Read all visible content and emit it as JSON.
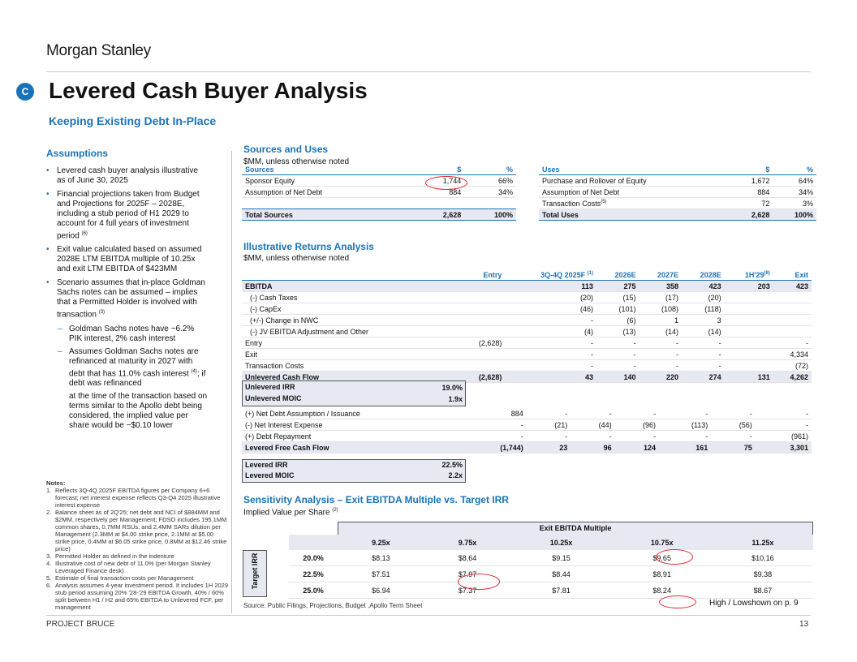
{
  "brand": "Morgan Stanley",
  "badge": "C",
  "title": "Levered Cash Buyer Analysis",
  "subtitle": "Keeping Existing Debt In-Place",
  "assumptions": {
    "heading": "Assumptions",
    "b1": "Levered cash buyer analysis illustrative as of June 30, 2025",
    "b2": "Financial projections taken from Budget and Projections for 2025F – 2028E, including a stub period of H1 2029 to account for 4 full years of investment period",
    "b2_sup": "(6)",
    "b3": "Exit value calculated based on assumed 2028E LTM EBITDA multiple of 10.25x and exit LTM EBITDA of $423MM",
    "b4": "Scenario assumes that in-place Goldman Sachs notes can be assumed – implies that a Permitted Holder is involved with transaction",
    "b4_sup": "(3)",
    "s1": "Goldman Sachs notes have ~6.2% PIK interest, 2% cash interest",
    "s2": "Assumes Goldman Sachs notes are refinanced at maturity in 2027 with debt that has 11.0% cash interest",
    "s2_sup": "(4)",
    "s2_tail": "; if debt was refinanced",
    "s3": "at the time of the transaction based on terms similar to the Apollo debt being considered, the implied value per share would be ~$0.10 lower"
  },
  "notes": {
    "heading": "Notes:",
    "items": [
      {
        "num": "1.",
        "text": "Reflects 3Q-4Q 2025F EBITDA figures per Company 6+6 forecast; net interest expense reflects Q3-Q4 2025 illustrative interest expense"
      },
      {
        "num": "2.",
        "text": "Balance sheet as of 2Q'25; net debt and NCI of $884MM and $2MM, respectively per Management; FDSO includes 195.1MM common shares, 0.7MM RSUs, and 2.4MM SARs dilution per Management (2.3MM at $4.00 strike price, 2.1MM at $5.00 strike price, 0.4MM at $6.05 strike price, 0.8MM at $12.46 strike price)"
      },
      {
        "num": "3.",
        "text": "Permitted Holder as defined in the indenture"
      },
      {
        "num": "4.",
        "text": "Illustrative cost of new debt of 11.0% (per Morgan Stanley Leveraged Finance desk)"
      },
      {
        "num": "5.",
        "text": "Estimate of final transaction costs per Management"
      },
      {
        "num": "6.",
        "text": "Analysis assumes 4-year investment period. It includes 1H 2029 stub period assuming 20% '28-'29 EBITDA Growth, 40% / 60% split between H1 / H2 and 65% EBITDA to Unlevered FCF, per management"
      }
    ]
  },
  "sources_uses": {
    "heading": "Sources and Uses",
    "unit": "$MM, unless otherwise noted",
    "sources_header": [
      "Sources",
      "$",
      "%"
    ],
    "sources": [
      [
        "Sponsor Equity",
        "1,744",
        "66%"
      ],
      [
        "Assumption of Net Debt",
        "884",
        "34%"
      ]
    ],
    "sources_total": [
      "Total Sources",
      "2,628",
      "100%"
    ],
    "uses_header": [
      "Uses",
      "$",
      "%"
    ],
    "uses": [
      [
        "Purchase and Rollover of Equity",
        "1,672",
        "64%"
      ],
      [
        "Assumption of Net Debt",
        "884",
        "34%"
      ],
      [
        "Transaction Costs",
        "72",
        "3%"
      ]
    ],
    "uses_tc_sup": "(5)",
    "uses_total": [
      "Total Uses",
      "2,628",
      "100%"
    ]
  },
  "returns": {
    "heading": "Illustrative Returns Analysis",
    "unit": "$MM, unless otherwise noted",
    "cols": [
      "Entry",
      "3Q-4Q 2025F",
      "2026E",
      "2027E",
      "2028E",
      "1H'29",
      "Exit"
    ],
    "col_sups": [
      "",
      "(1)",
      "",
      "",
      "",
      "(6)",
      ""
    ],
    "rows1": [
      {
        "label": "EBITDA",
        "vals": [
          "",
          "113",
          "275",
          "358",
          "423",
          "203",
          "423"
        ],
        "bold": true,
        "shade": true
      },
      {
        "label": "(-) Cash Taxes",
        "vals": [
          "",
          "(20)",
          "(15)",
          "(17)",
          "(20)",
          "",
          ""
        ],
        "indent": true
      },
      {
        "label": "(-) CapEx",
        "vals": [
          "",
          "(46)",
          "(101)",
          "(108)",
          "(118)",
          "",
          ""
        ],
        "indent": true
      },
      {
        "label": "(+/-) Change in NWC",
        "vals": [
          "",
          "-",
          "(6)",
          "1",
          "3",
          "",
          ""
        ],
        "indent": true
      },
      {
        "label": "(-) JV EBITDA Adjustment and Other",
        "vals": [
          "",
          "(4)",
          "(13)",
          "(14)",
          "(14)",
          "",
          ""
        ],
        "indent": true
      },
      {
        "label": "Entry",
        "vals": [
          "(2,628)",
          "-",
          "-",
          "-",
          "-",
          "",
          "-"
        ]
      },
      {
        "label": "Exit",
        "vals": [
          "",
          "-",
          "-",
          "-",
          "-",
          "",
          "4,334"
        ]
      },
      {
        "label": "Transaction Costs",
        "vals": [
          "",
          "-",
          "-",
          "-",
          "-",
          "",
          "(72)"
        ]
      },
      {
        "label": "Unlevered Cash Flow",
        "vals": [
          "(2,628)",
          "43",
          "140",
          "220",
          "274",
          "131",
          "4,262"
        ],
        "bold": true,
        "shade": true
      }
    ],
    "unlev_irr_label": "Unlevered IRR",
    "unlev_irr": "19.0%",
    "unlev_moic_label": "Unlevered MOIC",
    "unlev_moic": "1.9x",
    "rows2": [
      {
        "label": "(+) Net Debt Assumption / Issuance",
        "vals": [
          "884",
          "-",
          "-",
          "-",
          "-",
          "-",
          "-"
        ]
      },
      {
        "label": "(-) Net Interest Expense",
        "vals": [
          "-",
          "(21)",
          "(44)",
          "(96)",
          "(113)",
          "(56)",
          "-"
        ]
      },
      {
        "label": "(+) Debt Repayment",
        "vals": [
          "-",
          "-",
          "-",
          "-",
          "-",
          "-",
          "(961)"
        ]
      },
      {
        "label": "Levered Free Cash Flow",
        "vals": [
          "(1,744)",
          "23",
          "96",
          "124",
          "161",
          "75",
          "3,301"
        ],
        "bold": true,
        "shade": true
      }
    ],
    "lev_irr_label": "Levered IRR",
    "lev_irr": "22.5%",
    "lev_moic_label": "Levered MOIC",
    "lev_moic": "2.2x"
  },
  "sensitivity": {
    "heading": "Sensitivity Analysis – Exit EBITDA Multiple vs. Target IRR",
    "sub": "Implied Value per Share",
    "sub_sup": "(2)",
    "col_group": "Exit EBITDA Multiple",
    "row_group": "Target IRR",
    "multiples": [
      "9.25x",
      "9.75x",
      "10.25x",
      "10.75x",
      "11.25x"
    ],
    "rows": [
      {
        "irr": "20.0%",
        "vals": [
          "$8.13",
          "$8.64",
          "$9.15",
          "$9.65",
          "$10.16"
        ]
      },
      {
        "irr": "22.5%",
        "vals": [
          "$7.51",
          "$7.97",
          "$8.44",
          "$8.91",
          "$9.38"
        ]
      },
      {
        "irr": "25.0%",
        "vals": [
          "$6.94",
          "$7.37",
          "$7.81",
          "$8.24",
          "$8.67"
        ]
      }
    ]
  },
  "source_note": "Source: Public Filings, Projections, Budget ,Apollo Term Sheet",
  "hl_note": "High / Lowshown on p. 9",
  "footer_left": "PROJECT BRUCE",
  "page_number": "13"
}
